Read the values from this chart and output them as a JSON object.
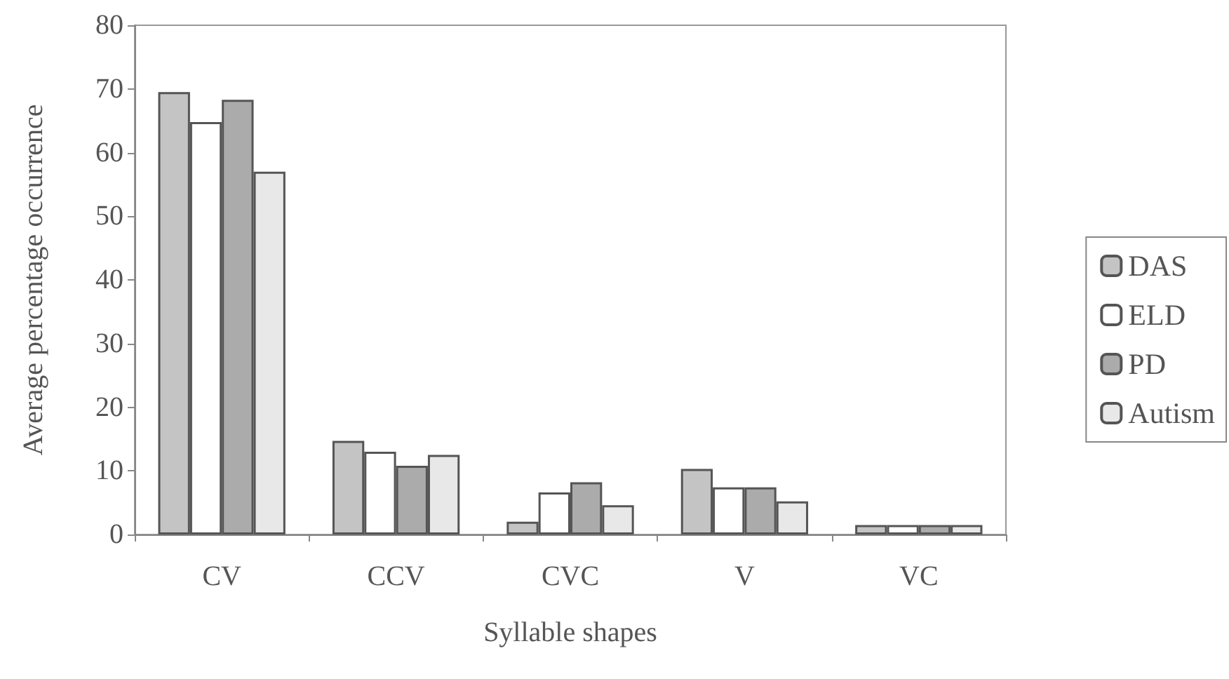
{
  "chart_data": {
    "type": "bar",
    "xlabel": "Syllable shapes",
    "ylabel": "Average percentage occurrence",
    "categories": [
      "CV",
      "CCV",
      "CVC",
      "V",
      "VC"
    ],
    "series": [
      {
        "name": "DAS",
        "color": "#c4c4c4",
        "values": [
          69.5,
          14.7,
          2,
          10.3,
          1.5
        ]
      },
      {
        "name": "ELD",
        "color": "#ffffff",
        "values": [
          64.8,
          13,
          6.6,
          7.4,
          1.5
        ]
      },
      {
        "name": "PD",
        "color": "#ababab",
        "values": [
          68.3,
          10.8,
          8.2,
          7.4,
          1.5
        ]
      },
      {
        "name": "Autism",
        "color": "#e8e8e8",
        "values": [
          57,
          12.5,
          4.6,
          5.2,
          1.5
        ]
      }
    ],
    "ylim": [
      0,
      80
    ],
    "yticks": [
      0,
      10,
      20,
      30,
      40,
      50,
      60,
      70,
      80
    ],
    "grid": false,
    "legend": "right"
  }
}
